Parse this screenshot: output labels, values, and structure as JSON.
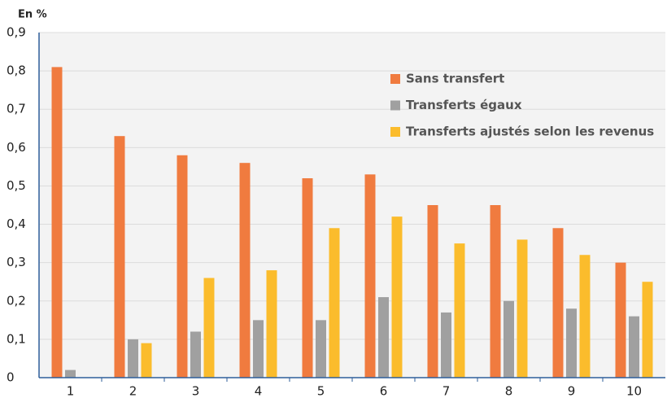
{
  "chart_data": {
    "type": "bar",
    "ylabel": "En %",
    "categories": [
      "1",
      "2",
      "3",
      "4",
      "5",
      "6",
      "7",
      "8",
      "9",
      "10"
    ],
    "series": [
      {
        "name": "Sans transfert",
        "color": "#f07b3f",
        "values": [
          0.81,
          0.63,
          0.58,
          0.56,
          0.52,
          0.53,
          0.45,
          0.45,
          0.39,
          0.3
        ]
      },
      {
        "name": "Transferts égaux",
        "color": "#a0a0a0",
        "values": [
          0.02,
          0.1,
          0.12,
          0.15,
          0.15,
          0.21,
          0.17,
          0.2,
          0.18,
          0.16
        ]
      },
      {
        "name": "Transferts ajustés selon les revenus",
        "color": "#fbbc2c",
        "values": [
          0,
          0.09,
          0.26,
          0.28,
          0.39,
          0.42,
          0.35,
          0.36,
          0.32,
          0.25
        ]
      }
    ],
    "ylim": [
      0,
      0.9
    ],
    "yticks": [
      0,
      {
        "value": 0.1,
        "label": "0,1"
      },
      {
        "value": 0.2,
        "label": "0,2"
      },
      {
        "value": 0.3,
        "label": "0,3"
      },
      {
        "value": 0.4,
        "label": "0,4"
      },
      {
        "value": 0.5,
        "label": "0,5"
      },
      {
        "value": 0.6,
        "label": "0,6"
      },
      {
        "value": 0.7,
        "label": "0,7"
      },
      {
        "value": 0.8,
        "label": "0,8"
      },
      {
        "value": 0.9,
        "label": "0,9"
      }
    ],
    "grid": true,
    "legend": "upper right"
  }
}
